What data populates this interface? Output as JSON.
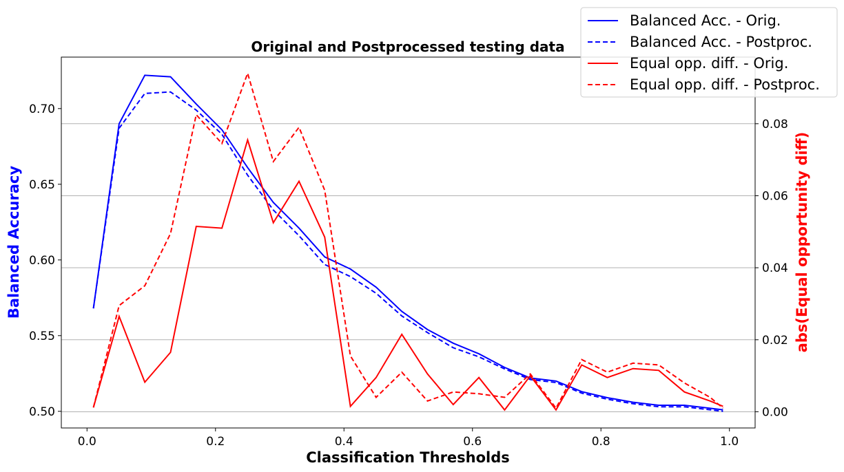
{
  "chart_data": {
    "type": "line",
    "title": "Original and Postprocessed testing data",
    "xlabel": "Classification Thresholds",
    "ylabel_left": "Balanced Accuracy",
    "ylabel_right": "abs(Equal opportunity diff)",
    "xlim": [
      -0.04,
      1.04
    ],
    "ylim_left": [
      0.489,
      0.734
    ],
    "ylim_right": [
      -0.0045,
      0.0985
    ],
    "xticks": [
      "0.0",
      "0.2",
      "0.4",
      "0.6",
      "0.8",
      "1.0"
    ],
    "yticks_left": [
      "0.50",
      "0.55",
      "0.60",
      "0.65",
      "0.70"
    ],
    "yticks_right": [
      "0.00",
      "0.02",
      "0.04",
      "0.06",
      "0.08"
    ],
    "grid": "right-axis horizontal",
    "legend_position": "upper-right",
    "colors": {
      "left_axis": "#0000ff",
      "right_axis": "#ff0000"
    },
    "x": [
      0.01,
      0.05,
      0.09,
      0.13,
      0.17,
      0.21,
      0.25,
      0.29,
      0.33,
      0.37,
      0.41,
      0.45,
      0.49,
      0.53,
      0.57,
      0.61,
      0.65,
      0.69,
      0.73,
      0.77,
      0.81,
      0.85,
      0.89,
      0.93,
      0.97,
      0.99
    ],
    "series": [
      {
        "name": "Balanced Acc. - Orig.",
        "axis": "left",
        "color": "#0000ff",
        "dash": "solid",
        "values": [
          0.568,
          0.69,
          0.722,
          0.721,
          0.703,
          0.686,
          0.661,
          0.638,
          0.621,
          0.602,
          0.594,
          0.582,
          0.566,
          0.554,
          0.545,
          0.538,
          0.529,
          0.522,
          0.52,
          0.513,
          0.509,
          0.506,
          0.504,
          0.504,
          0.502,
          0.501
        ]
      },
      {
        "name": "Balanced Acc. - Postproc.",
        "axis": "left",
        "color": "#0000ff",
        "dash": "dashed",
        "values": [
          0.568,
          0.687,
          0.71,
          0.711,
          0.699,
          0.683,
          0.656,
          0.633,
          0.616,
          0.597,
          0.589,
          0.578,
          0.563,
          0.552,
          0.542,
          0.536,
          0.528,
          0.521,
          0.519,
          0.512,
          0.508,
          0.505,
          0.503,
          0.503,
          0.501,
          0.5
        ]
      },
      {
        "name": "Equal opp. diff. - Orig.",
        "axis": "right",
        "color": "#ff0000",
        "dash": "solid",
        "values": [
          0.0012,
          0.0265,
          0.0082,
          0.0165,
          0.0515,
          0.051,
          0.0755,
          0.0525,
          0.064,
          0.0485,
          0.0015,
          0.0095,
          0.0215,
          0.0105,
          0.002,
          0.0095,
          0.0005,
          0.01,
          0.0005,
          0.013,
          0.0095,
          0.012,
          0.0115,
          0.0055,
          0.003,
          0.0015
        ]
      },
      {
        "name": "Equal opp. diff. - Postproc.",
        "axis": "right",
        "color": "#ff0000",
        "dash": "dashed",
        "values": [
          0.0012,
          0.0295,
          0.035,
          0.0495,
          0.0825,
          0.0745,
          0.094,
          0.0695,
          0.079,
          0.0615,
          0.0155,
          0.004,
          0.011,
          0.003,
          0.0055,
          0.005,
          0.004,
          0.0105,
          0.001,
          0.0145,
          0.011,
          0.0135,
          0.013,
          0.008,
          0.004,
          0.001
        ]
      }
    ]
  }
}
